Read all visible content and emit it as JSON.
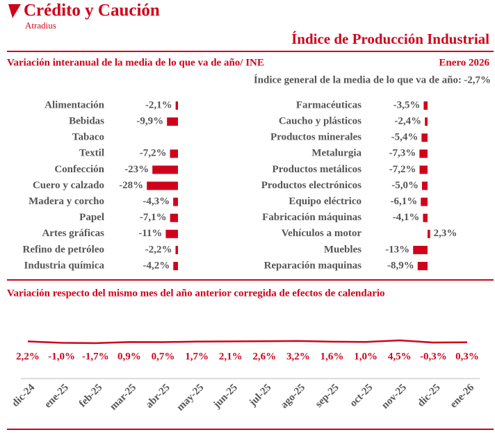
{
  "header": {
    "brand": "Crédito y Caución",
    "brand_sub": "Atradius",
    "title": "Índice de Producción Industrial"
  },
  "section": {
    "title": "Variación interanual de la media de lo que va de año/ INE",
    "date": "Enero 2026",
    "summary_label": "Índice general de la media de lo que va de año:",
    "summary_value": "-2,7%"
  },
  "chart_data": [
    {
      "type": "bar",
      "color": "#d0021b",
      "categories": [
        "Alimentación",
        "Bebidas",
        "Tabaco",
        "Textil",
        "Confección",
        "Cuero y calzado",
        "Madera y corcho",
        "Papel",
        "Artes gráficas",
        "Refino de petróleo",
        "Industria química"
      ],
      "values": [
        -2.1,
        -9.9,
        null,
        -7.2,
        -23,
        -28,
        -4.3,
        -7.1,
        -11,
        -2.2,
        -4.2
      ],
      "value_labels": [
        "-2,1%",
        "-9,9%",
        null,
        "-7,2%",
        "-23%",
        "-28%",
        "-4,3%",
        "-7,1%",
        "-11%",
        "-2,2%",
        "-4,2%"
      ]
    },
    {
      "type": "bar",
      "color": "#d0021b",
      "categories": [
        "Farmacéuticas",
        "Caucho y plásticos",
        "Productos minerales",
        "Metalurgia",
        "Productos metálicos",
        "Productos electrónicos",
        "Equipo eléctrico",
        "Fabricación máquinas",
        "Vehículos a motor",
        "Muebles",
        "Reparación maquinas"
      ],
      "values": [
        -3.5,
        -2.4,
        -5.4,
        -7.3,
        -7.2,
        -5.0,
        -6.1,
        -4.1,
        2.3,
        -13,
        -8.9
      ],
      "value_labels": [
        "-3,5%",
        "-2,4%",
        "-5,4%",
        "-7,3%",
        "-7,2%",
        "-5,0%",
        "-6,1%",
        "-4,1%",
        "2,3%",
        "-13%",
        "-8,9%"
      ]
    },
    {
      "type": "line",
      "title": "Variación respecto del mismo mes del año anterior corregida de efectos de calendario",
      "color": "#d0021b",
      "categories": [
        "dic-24",
        "ene-25",
        "feb-25",
        "mar-25",
        "abr-25",
        "may-25",
        "jun-25",
        "jul-25",
        "ago-25",
        "sep-25",
        "oct-25",
        "nov-25",
        "dic-25",
        "ene-26"
      ],
      "values": [
        2.2,
        -1.0,
        -1.7,
        0.9,
        0.7,
        1.7,
        2.1,
        2.6,
        3.2,
        1.6,
        1.0,
        4.5,
        -0.3,
        0.3
      ],
      "value_labels": [
        "2,2%",
        "-1,0%",
        "-1,7%",
        "0,9%",
        "0,7%",
        "1,7%",
        "2,1%",
        "2,6%",
        "3,2%",
        "1,6%",
        "1,0%",
        "4,5%",
        "-0,3%",
        "0,3%"
      ]
    }
  ]
}
